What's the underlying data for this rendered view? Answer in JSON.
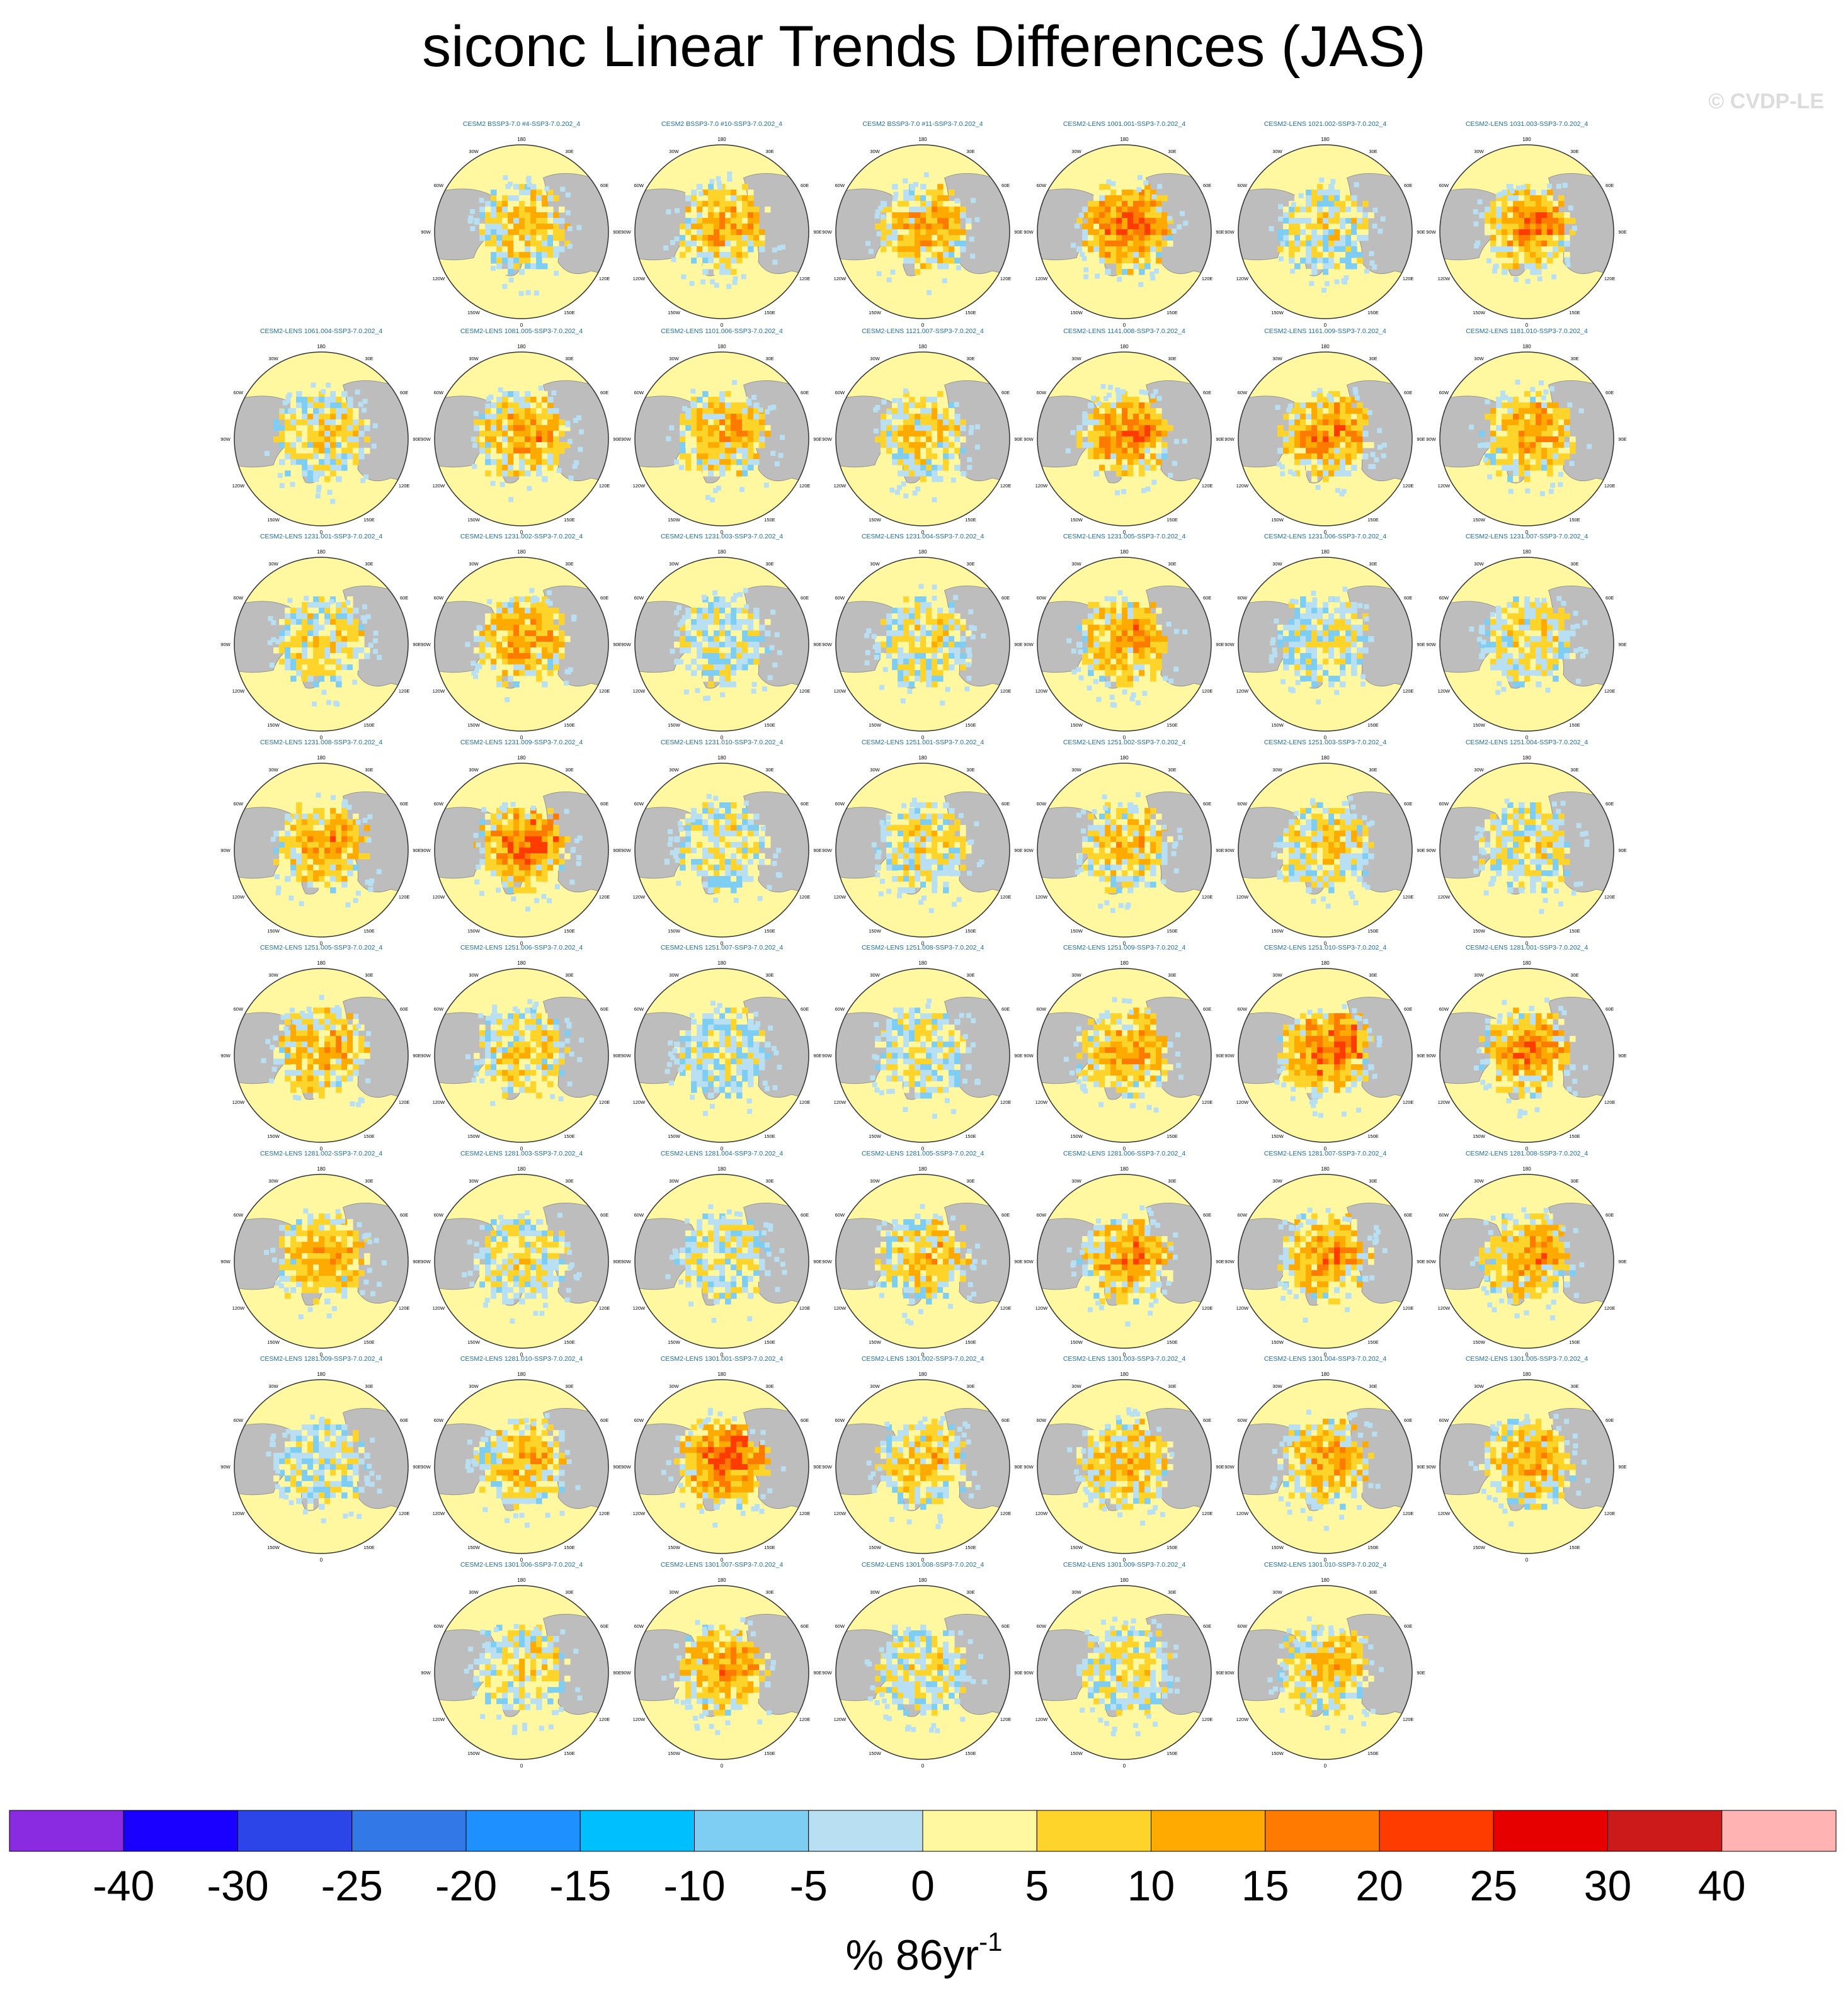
{
  "title": "siconc Linear Trends Differences (JAS)",
  "watermark": "© CVDP-LE",
  "colors": {
    "land": "#bdbdbd",
    "panel_title": "#1c6ea4",
    "outline": "#333333"
  },
  "map_labels": {
    "top": "180",
    "bottom": "0",
    "lon_labels": [
      "150W",
      "150E",
      "120W",
      "120E",
      "90W",
      "90E",
      "60W",
      "60E",
      "30W",
      "30E"
    ]
  },
  "chart_data": {
    "type": "heatmap",
    "projection": "north polar stereographic",
    "variable": "siconc",
    "season": "JAS",
    "units_label": "% 86yr",
    "units_exponent": "-1",
    "colorbar": {
      "tick_labels": [
        "-40",
        "-30",
        "-25",
        "-20",
        "-15",
        "-10",
        "-5",
        "0",
        "5",
        "10",
        "15",
        "20",
        "25",
        "30",
        "40"
      ],
      "colors": [
        "#8a2be2",
        "#1a00ff",
        "#2b45e8",
        "#3278e6",
        "#1e90ff",
        "#00bfff",
        "#7ecdf2",
        "#b8e0f2",
        "#fff8a0",
        "#ffd42a",
        "#ffaa00",
        "#ff7a00",
        "#ff3c00",
        "#e60000",
        "#cc1a1a",
        "#ffb3b3"
      ]
    },
    "panels": [
      {
        "title": "CESM2 BSSP3-7.0 #4-SSP3-7.0.202_4",
        "row": 0,
        "col": 1,
        "anomaly": 0.45
      },
      {
        "title": "CESM2 BSSP3-7.0 #10-SSP3-7.0.202_4",
        "row": 0,
        "col": 2,
        "anomaly": 0.55
      },
      {
        "title": "CESM2 BSSP3-7.0 #11-SSP3-7.0.202_4",
        "row": 0,
        "col": 3,
        "anomaly": 0.6
      },
      {
        "title": "CESM2-LENS 1001.001-SSP3-7.0.202_4",
        "row": 0,
        "col": 4,
        "anomaly": 0.8
      },
      {
        "title": "CESM2-LENS 1021.002-SSP3-7.0.202_4",
        "row": 0,
        "col": 5,
        "anomaly": 0.3
      },
      {
        "title": "CESM2-LENS 1031.003-SSP3-7.0.202_4",
        "row": 0,
        "col": 6,
        "anomaly": 0.65
      },
      {
        "title": "CESM2-LENS 1061.004-SSP3-7.0.202_4",
        "row": 1,
        "col": 0,
        "anomaly": 0.35
      },
      {
        "title": "CESM2-LENS 1081.005-SSP3-7.0.202_4",
        "row": 1,
        "col": 1,
        "anomaly": 0.6
      },
      {
        "title": "CESM2-LENS 1101.006-SSP3-7.0.202_4",
        "row": 1,
        "col": 2,
        "anomaly": 0.55
      },
      {
        "title": "CESM2-LENS 1121.007-SSP3-7.0.202_4",
        "row": 1,
        "col": 3,
        "anomaly": 0.4
      },
      {
        "title": "CESM2-LENS 1141.008-SSP3-7.0.202_4",
        "row": 1,
        "col": 4,
        "anomaly": 0.7
      },
      {
        "title": "CESM2-LENS 1161.009-SSP3-7.0.202_4",
        "row": 1,
        "col": 5,
        "anomaly": 0.65
      },
      {
        "title": "CESM2-LENS 1181.010-SSP3-7.0.202_4",
        "row": 1,
        "col": 6,
        "anomaly": 0.6
      },
      {
        "title": "CESM2-LENS 1231.001-SSP3-7.0.202_4",
        "row": 2,
        "col": 0,
        "anomaly": 0.35
      },
      {
        "title": "CESM2-LENS 1231.002-SSP3-7.0.202_4",
        "row": 2,
        "col": 1,
        "anomaly": 0.6
      },
      {
        "title": "CESM2-LENS 1231.003-SSP3-7.0.202_4",
        "row": 2,
        "col": 2,
        "anomaly": 0.2
      },
      {
        "title": "CESM2-LENS 1231.004-SSP3-7.0.202_4",
        "row": 2,
        "col": 3,
        "anomaly": 0.3
      },
      {
        "title": "CESM2-LENS 1231.005-SSP3-7.0.202_4",
        "row": 2,
        "col": 4,
        "anomaly": 0.6
      },
      {
        "title": "CESM2-LENS 1231.006-SSP3-7.0.202_4",
        "row": 2,
        "col": 5,
        "anomaly": 0.2
      },
      {
        "title": "CESM2-LENS 1231.007-SSP3-7.0.202_4",
        "row": 2,
        "col": 6,
        "anomaly": 0.3
      },
      {
        "title": "CESM2-LENS 1231.008-SSP3-7.0.202_4",
        "row": 3,
        "col": 0,
        "anomaly": 0.6
      },
      {
        "title": "CESM2-LENS 1231.009-SSP3-7.0.202_4",
        "row": 3,
        "col": 1,
        "anomaly": 0.75
      },
      {
        "title": "CESM2-LENS 1231.010-SSP3-7.0.202_4",
        "row": 3,
        "col": 2,
        "anomaly": 0.25
      },
      {
        "title": "CESM2-LENS 1251.001-SSP3-7.0.202_4",
        "row": 3,
        "col": 3,
        "anomaly": 0.35
      },
      {
        "title": "CESM2-LENS 1251.002-SSP3-7.0.202_4",
        "row": 3,
        "col": 4,
        "anomaly": 0.45
      },
      {
        "title": "CESM2-LENS 1251.003-SSP3-7.0.202_4",
        "row": 3,
        "col": 5,
        "anomaly": 0.4
      },
      {
        "title": "CESM2-LENS 1251.004-SSP3-7.0.202_4",
        "row": 3,
        "col": 6,
        "anomaly": 0.3
      },
      {
        "title": "CESM2-LENS 1251.005-SSP3-7.0.202_4",
        "row": 4,
        "col": 0,
        "anomaly": 0.55
      },
      {
        "title": "CESM2-LENS 1251.006-SSP3-7.0.202_4",
        "row": 4,
        "col": 1,
        "anomaly": 0.4
      },
      {
        "title": "CESM2-LENS 1251.007-SSP3-7.0.202_4",
        "row": 4,
        "col": 2,
        "anomaly": 0.15
      },
      {
        "title": "CESM2-LENS 1251.008-SSP3-7.0.202_4",
        "row": 4,
        "col": 3,
        "anomaly": 0.25
      },
      {
        "title": "CESM2-LENS 1251.009-SSP3-7.0.202_4",
        "row": 4,
        "col": 4,
        "anomaly": 0.6
      },
      {
        "title": "CESM2-LENS 1251.010-SSP3-7.0.202_4",
        "row": 4,
        "col": 5,
        "anomaly": 0.8
      },
      {
        "title": "CESM2-LENS 1281.001-SSP3-7.0.202_4",
        "row": 4,
        "col": 6,
        "anomaly": 0.65
      },
      {
        "title": "CESM2-LENS 1281.002-SSP3-7.0.202_4",
        "row": 5,
        "col": 0,
        "anomaly": 0.55
      },
      {
        "title": "CESM2-LENS 1281.003-SSP3-7.0.202_4",
        "row": 5,
        "col": 1,
        "anomaly": 0.3
      },
      {
        "title": "CESM2-LENS 1281.004-SSP3-7.0.202_4",
        "row": 5,
        "col": 2,
        "anomaly": 0.25
      },
      {
        "title": "CESM2-LENS 1281.005-SSP3-7.0.202_4",
        "row": 5,
        "col": 3,
        "anomaly": 0.45
      },
      {
        "title": "CESM2-LENS 1281.006-SSP3-7.0.202_4",
        "row": 5,
        "col": 4,
        "anomaly": 0.6
      },
      {
        "title": "CESM2-LENS 1281.007-SSP3-7.0.202_4",
        "row": 5,
        "col": 5,
        "anomaly": 0.65
      },
      {
        "title": "CESM2-LENS 1281.008-SSP3-7.0.202_4",
        "row": 5,
        "col": 6,
        "anomaly": 0.6
      },
      {
        "title": "CESM2-LENS 1281.009-SSP3-7.0.202_4",
        "row": 6,
        "col": 0,
        "anomaly": 0.2
      },
      {
        "title": "CESM2-LENS 1281.010-SSP3-7.0.202_4",
        "row": 6,
        "col": 1,
        "anomaly": 0.5
      },
      {
        "title": "CESM2-LENS 1301.001-SSP3-7.0.202_4",
        "row": 6,
        "col": 2,
        "anomaly": 0.85
      },
      {
        "title": "CESM2-LENS 1301.002-SSP3-7.0.202_4",
        "row": 6,
        "col": 3,
        "anomaly": 0.45
      },
      {
        "title": "CESM2-LENS 1301.003-SSP3-7.0.202_4",
        "row": 6,
        "col": 4,
        "anomaly": 0.5
      },
      {
        "title": "CESM2-LENS 1301.004-SSP3-7.0.202_4",
        "row": 6,
        "col": 5,
        "anomaly": 0.6
      },
      {
        "title": "CESM2-LENS 1301.005-SSP3-7.0.202_4",
        "row": 6,
        "col": 6,
        "anomaly": 0.55
      },
      {
        "title": "CESM2-LENS 1301.006-SSP3-7.0.202_4",
        "row": 7,
        "col": 1,
        "anomaly": 0.35
      },
      {
        "title": "CESM2-LENS 1301.007-SSP3-7.0.202_4",
        "row": 7,
        "col": 2,
        "anomaly": 0.6
      },
      {
        "title": "CESM2-LENS 1301.008-SSP3-7.0.202_4",
        "row": 7,
        "col": 3,
        "anomaly": 0.25
      },
      {
        "title": "CESM2-LENS 1301.009-SSP3-7.0.202_4",
        "row": 7,
        "col": 4,
        "anomaly": 0.3
      },
      {
        "title": "CESM2-LENS 1301.010-SSP3-7.0.202_4",
        "row": 7,
        "col": 5,
        "anomaly": 0.45
      }
    ]
  }
}
